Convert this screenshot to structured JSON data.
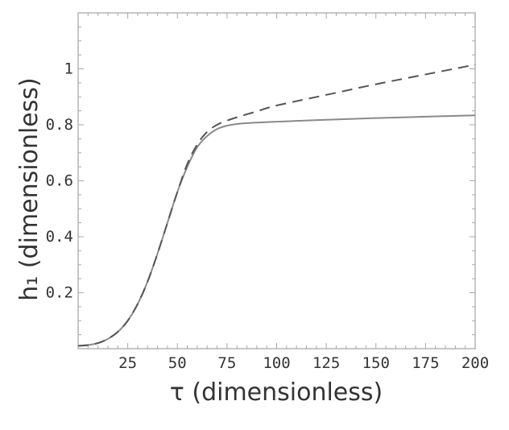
{
  "chart_data": {
    "type": "line",
    "title": "",
    "xlabel": "τ (dimensionless)",
    "ylabel": "h₁ (dimensionless)",
    "xlim": [
      0,
      200
    ],
    "ylim": [
      0,
      1.2
    ],
    "xticks": [
      25,
      50,
      75,
      100,
      125,
      150,
      175,
      200
    ],
    "yticks": [
      0.2,
      0.4,
      0.6,
      0.8,
      1
    ],
    "xtick_labels": [
      "25",
      "50",
      "75",
      "100",
      "125",
      "150",
      "175",
      "200"
    ],
    "ytick_labels": [
      "0.2",
      "0.4",
      "0.6",
      "0.8",
      "1"
    ],
    "grid": false,
    "series": [
      {
        "style": "solid",
        "color": "#8a8a8a",
        "x": [
          0,
          5,
          10,
          15,
          20,
          25,
          30,
          35,
          40,
          45,
          50,
          55,
          60,
          65,
          70,
          75,
          80,
          85,
          90,
          100,
          110,
          125,
          150,
          175,
          200
        ],
        "y": [
          0.01,
          0.013,
          0.02,
          0.035,
          0.06,
          0.1,
          0.16,
          0.24,
          0.34,
          0.45,
          0.56,
          0.65,
          0.72,
          0.76,
          0.785,
          0.797,
          0.803,
          0.806,
          0.808,
          0.811,
          0.814,
          0.818,
          0.824,
          0.829,
          0.834
        ]
      },
      {
        "style": "dashed",
        "color": "#555555",
        "x": [
          0,
          5,
          10,
          15,
          20,
          25,
          30,
          35,
          40,
          45,
          50,
          55,
          60,
          65,
          70,
          75,
          80,
          90,
          100,
          125,
          150,
          175,
          200
        ],
        "y": [
          0.01,
          0.013,
          0.02,
          0.035,
          0.06,
          0.1,
          0.16,
          0.24,
          0.34,
          0.45,
          0.56,
          0.66,
          0.73,
          0.775,
          0.8,
          0.815,
          0.827,
          0.848,
          0.869,
          0.907,
          0.945,
          0.98,
          1.015
        ]
      }
    ]
  }
}
